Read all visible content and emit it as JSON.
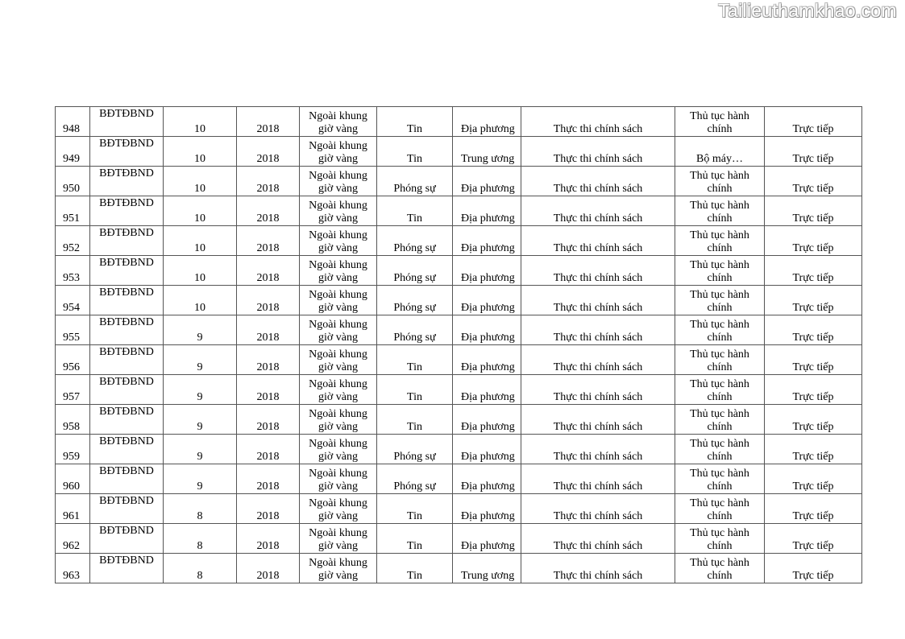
{
  "watermark": "Tailieuthamkhao.com",
  "rows": [
    [
      "948",
      "BĐTĐBND",
      "10",
      "2018",
      "Ngoài khung giờ vàng",
      "Tin",
      "Địa phương",
      "Thực thi chính sách",
      "Thủ tục hành chính",
      "Trực tiếp"
    ],
    [
      "949",
      "BĐTĐBND",
      "10",
      "2018",
      "Ngoài khung giờ vàng",
      "Tin",
      "Trung ương",
      "Thực thi chính sách",
      "Bộ máy…",
      "Trực tiếp"
    ],
    [
      "950",
      "BĐTĐBND",
      "10",
      "2018",
      "Ngoài khung giờ vàng",
      "Phóng sự",
      "Địa phương",
      "Thực thi chính sách",
      "Thủ tục hành chính",
      "Trực tiếp"
    ],
    [
      "951",
      "BĐTĐBND",
      "10",
      "2018",
      "Ngoài khung giờ vàng",
      "Tin",
      "Địa phương",
      "Thực thi chính sách",
      "Thủ tục hành chính",
      "Trực tiếp"
    ],
    [
      "952",
      "BĐTĐBND",
      "10",
      "2018",
      "Ngoài khung giờ vàng",
      "Phóng sự",
      "Địa phương",
      "Thực thi chính sách",
      "Thủ tục hành chính",
      "Trực tiếp"
    ],
    [
      "953",
      "BĐTĐBND",
      "10",
      "2018",
      "Ngoài khung giờ vàng",
      "Phóng sự",
      "Địa phương",
      "Thực thi chính sách",
      "Thủ tục hành chính",
      "Trực tiếp"
    ],
    [
      "954",
      "BĐTĐBND",
      "10",
      "2018",
      "Ngoài khung giờ vàng",
      "Phóng sự",
      "Địa phương",
      "Thực thi chính sách",
      "Thủ tục hành chính",
      "Trực tiếp"
    ],
    [
      "955",
      "BĐTĐBND",
      "9",
      "2018",
      "Ngoài khung giờ vàng",
      "Phóng sự",
      "Địa phương",
      "Thực thi chính sách",
      "Thủ tục hành chính",
      "Trực tiếp"
    ],
    [
      "956",
      "BĐTĐBND",
      "9",
      "2018",
      "Ngoài khung giờ vàng",
      "Tin",
      "Địa phương",
      "Thực thi chính sách",
      "Thủ tục hành chính",
      "Trực tiếp"
    ],
    [
      "957",
      "BĐTĐBND",
      "9",
      "2018",
      "Ngoài khung giờ vàng",
      "Tin",
      "Địa phương",
      "Thực thi chính sách",
      "Thủ tục hành chính",
      "Trực tiếp"
    ],
    [
      "958",
      "BĐTĐBND",
      "9",
      "2018",
      "Ngoài khung giờ vàng",
      "Tin",
      "Địa phương",
      "Thực thi chính sách",
      "Thủ tục hành chính",
      "Trực tiếp"
    ],
    [
      "959",
      "BĐTĐBND",
      "9",
      "2018",
      "Ngoài khung giờ vàng",
      "Phóng sự",
      "Địa phương",
      "Thực thi chính sách",
      "Thủ tục hành chính",
      "Trực tiếp"
    ],
    [
      "960",
      "BĐTĐBND",
      "9",
      "2018",
      "Ngoài khung giờ vàng",
      "Phóng sự",
      "Địa phương",
      "Thực thi chính sách",
      "Thủ tục hành chính",
      "Trực tiếp"
    ],
    [
      "961",
      "BĐTĐBND",
      "8",
      "2018",
      "Ngoài khung giờ vàng",
      "Tin",
      "Địa phương",
      "Thực thi chính sách",
      "Thủ tục hành chính",
      "Trực tiếp"
    ],
    [
      "962",
      "BĐTĐBND",
      "8",
      "2018",
      "Ngoài khung giờ vàng",
      "Tin",
      "Địa phương",
      "Thực thi chính sách",
      "Thủ tục hành chính",
      "Trực tiếp"
    ],
    [
      "963",
      "BĐTĐBND",
      "8",
      "2018",
      "Ngoài khung giờ vàng",
      "Tin",
      "Trung ương",
      "Thực thi chính sách",
      "Thủ tục hành chính",
      "Trực tiếp"
    ]
  ]
}
